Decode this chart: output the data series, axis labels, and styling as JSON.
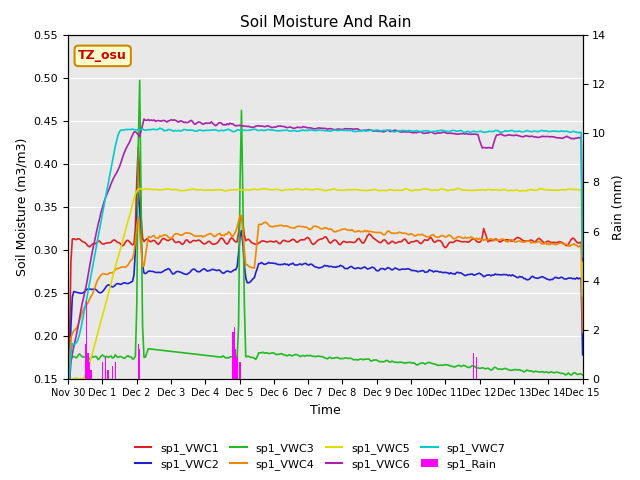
{
  "title": "Soil Moisture And Rain",
  "xlabel": "Time",
  "ylabel_left": "Soil Moisture (m3/m3)",
  "ylabel_right": "Rain (mm)",
  "ylim_left": [
    0.15,
    0.55
  ],
  "ylim_right": [
    0,
    14
  ],
  "bg_color": "#e8e8e8",
  "annotation_text": "TZ_osu",
  "annotation_bg": "#ffffcc",
  "annotation_border": "#cc8800",
  "series_colors": {
    "sp1_VWC1": "#dd2222",
    "sp1_VWC2": "#2222cc",
    "sp1_VWC3": "#22bb22",
    "sp1_VWC4": "#ee8800",
    "sp1_VWC5": "#dddd00",
    "sp1_VWC6": "#aa22aa",
    "sp1_VWC7": "#00cccc",
    "sp1_Rain": "#ff00ff"
  },
  "n_points": 360,
  "xtick_labels": [
    "Nov 30",
    "Dec 1",
    "Dec 2",
    "Dec 3",
    "Dec 4",
    "Dec 5",
    "Dec 6",
    "Dec 7",
    "Dec 8",
    "Dec 9",
    "Dec 10",
    "Dec 11",
    "Dec 12",
    "Dec 13",
    "Dec 14",
    "Dec 15"
  ],
  "xtick_positions": [
    0,
    1,
    2,
    3,
    4,
    5,
    6,
    7,
    8,
    9,
    10,
    11,
    12,
    13,
    14,
    15
  ]
}
